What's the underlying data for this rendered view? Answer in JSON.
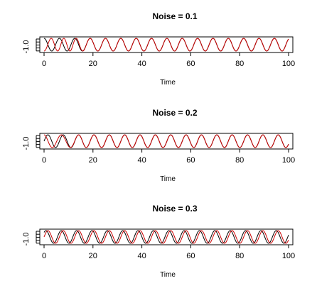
{
  "chart_data": [
    {
      "type": "line",
      "title": "Noise = 0.1",
      "xlabel": "Time",
      "ylabel": "",
      "xlim": [
        0,
        100
      ],
      "ylim": [
        -1.0,
        1.0
      ],
      "x_ticks": [
        0,
        20,
        40,
        60,
        80,
        100
      ],
      "y_ticks": [
        "-1.0"
      ],
      "series": [
        {
          "color": "#000000",
          "period": 6.28,
          "amplitude": 1.0,
          "phase": 1.5708
        },
        {
          "color": "#cc0000",
          "period": 6.28,
          "amplitude": 1.0,
          "phase": -1.5708,
          "converges_at": 18
        }
      ]
    },
    {
      "type": "line",
      "title": "Noise = 0.2",
      "xlabel": "Time",
      "ylabel": "",
      "xlim": [
        0,
        100
      ],
      "ylim": [
        -1.0,
        1.0
      ],
      "x_ticks": [
        0,
        20,
        40,
        60,
        80,
        100
      ],
      "y_ticks": [
        "-1.0"
      ],
      "series": [
        {
          "color": "#000000",
          "period": 6.28,
          "amplitude": 1.0,
          "phase": 0.0
        },
        {
          "color": "#cc0000",
          "period": 6.28,
          "amplitude": 1.0,
          "phase": 1.5708,
          "converges_at": 14
        }
      ]
    },
    {
      "type": "line",
      "title": "Noise = 0.3",
      "xlabel": "Time",
      "ylabel": "",
      "xlim": [
        0,
        100
      ],
      "ylim": [
        -1.0,
        1.0
      ],
      "x_ticks": [
        0,
        20,
        40,
        60,
        80,
        100
      ],
      "y_ticks": [
        "-1.0"
      ],
      "series": [
        {
          "color": "#000000",
          "period": 6.28,
          "amplitude": 1.0,
          "phase": 0.8
        },
        {
          "color": "#cc0000",
          "period": 6.28,
          "amplitude": 1.0,
          "phase": 0.0,
          "converges_at": 0
        }
      ]
    }
  ]
}
